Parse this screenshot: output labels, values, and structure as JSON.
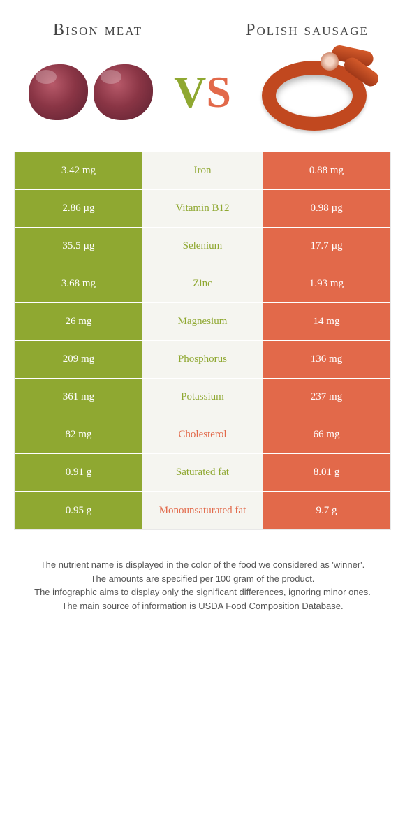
{
  "left_food": {
    "title": "Bison meat"
  },
  "right_food": {
    "title": "Polish sausage"
  },
  "vs": {
    "v": "V",
    "s": "S"
  },
  "colors": {
    "left": "#8fa831",
    "right": "#e2694a",
    "mid_bg": "#f5f5f0"
  },
  "rows": [
    {
      "left": "3.42 mg",
      "label": "Iron",
      "right": "0.88 mg",
      "winner": "left"
    },
    {
      "left": "2.86 µg",
      "label": "Vitamin B12",
      "right": "0.98 µg",
      "winner": "left"
    },
    {
      "left": "35.5 µg",
      "label": "Selenium",
      "right": "17.7 µg",
      "winner": "left"
    },
    {
      "left": "3.68 mg",
      "label": "Zinc",
      "right": "1.93 mg",
      "winner": "left"
    },
    {
      "left": "26 mg",
      "label": "Magnesium",
      "right": "14 mg",
      "winner": "left"
    },
    {
      "left": "209 mg",
      "label": "Phosphorus",
      "right": "136 mg",
      "winner": "left"
    },
    {
      "left": "361 mg",
      "label": "Potassium",
      "right": "237 mg",
      "winner": "left"
    },
    {
      "left": "82 mg",
      "label": "Cholesterol",
      "right": "66 mg",
      "winner": "right"
    },
    {
      "left": "0.91 g",
      "label": "Saturated fat",
      "right": "8.01 g",
      "winner": "left"
    },
    {
      "left": "0.95 g",
      "label": "Monounsaturated fat",
      "right": "9.7 g",
      "winner": "right"
    }
  ],
  "footer": {
    "l1": "The nutrient name is displayed in the color of the food we considered as 'winner'.",
    "l2": "The amounts are specified per 100 gram of the product.",
    "l3": "The infographic aims to display only the significant differences, ignoring minor ones.",
    "l4": "The main source of information is USDA Food Composition Database."
  }
}
